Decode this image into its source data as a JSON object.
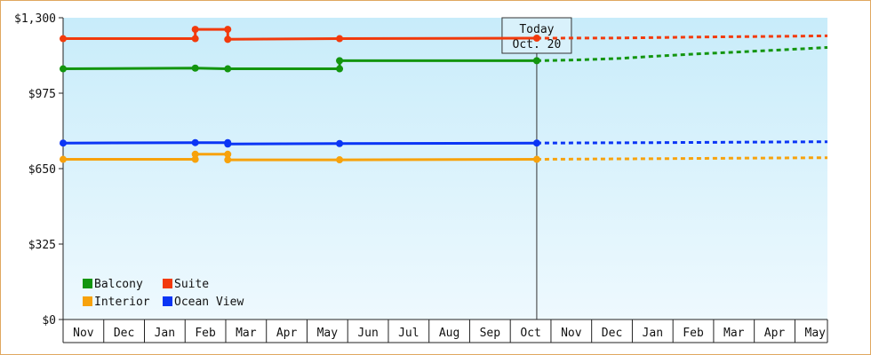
{
  "chart_data": {
    "type": "line",
    "title": "",
    "xlabel": "",
    "ylabel": "",
    "ylim": [
      0,
      1300
    ],
    "y_ticks": [
      {
        "value": 0,
        "label": "$0"
      },
      {
        "value": 325,
        "label": "$325"
      },
      {
        "value": 650,
        "label": "$650"
      },
      {
        "value": 975,
        "label": "$975"
      },
      {
        "value": 1300,
        "label": "$1,300"
      }
    ],
    "x_domain_months": [
      0,
      18.8
    ],
    "x_ticks": [
      "Nov",
      "Dec",
      "Jan",
      "Feb",
      "Mar",
      "Apr",
      "May",
      "Jun",
      "Jul",
      "Aug",
      "Sep",
      "Oct",
      "Nov",
      "Dec",
      "Jan",
      "Feb",
      "Mar",
      "Apr",
      "May"
    ],
    "today_marker": {
      "line1": "Today",
      "line2": "Oct. 20",
      "x": 11.65
    },
    "legend_position": "bottom-left",
    "grid": false,
    "background_gradient": [
      "#c8ecfa",
      "#eef9fe"
    ],
    "series": [
      {
        "name": "Balcony",
        "color": "#13950f",
        "observed": [
          [
            0,
            1080
          ],
          [
            3.25,
            1083
          ],
          [
            3.25,
            1083
          ],
          [
            4.05,
            1080
          ],
          [
            4.05,
            1080
          ],
          [
            6.8,
            1080
          ],
          [
            6.8,
            1115
          ],
          [
            11.65,
            1115
          ]
        ],
        "markers": [
          [
            0,
            1080
          ],
          [
            3.25,
            1083
          ],
          [
            4.05,
            1080
          ],
          [
            6.8,
            1080
          ],
          [
            6.8,
            1115
          ],
          [
            11.65,
            1115
          ]
        ],
        "forecast": [
          [
            11.65,
            1115
          ],
          [
            12.6,
            1118
          ],
          [
            13.7,
            1125
          ],
          [
            14.6,
            1135
          ],
          [
            15.7,
            1145
          ],
          [
            16.7,
            1153
          ],
          [
            17.7,
            1162
          ],
          [
            18.8,
            1172
          ]
        ]
      },
      {
        "name": "Suite",
        "color": "#f23a0c",
        "observed": [
          [
            0,
            1210
          ],
          [
            3.25,
            1210
          ],
          [
            3.25,
            1250
          ],
          [
            4.05,
            1250
          ],
          [
            4.05,
            1207
          ],
          [
            6.8,
            1210
          ],
          [
            11.65,
            1212
          ]
        ],
        "markers": [
          [
            0,
            1210
          ],
          [
            3.25,
            1210
          ],
          [
            3.25,
            1250
          ],
          [
            4.05,
            1250
          ],
          [
            4.05,
            1207
          ],
          [
            6.8,
            1210
          ],
          [
            11.65,
            1212
          ]
        ],
        "forecast": [
          [
            11.65,
            1212
          ],
          [
            13.7,
            1213
          ],
          [
            15.7,
            1217
          ],
          [
            17.7,
            1220
          ],
          [
            18.8,
            1222
          ]
        ]
      },
      {
        "name": "Interior",
        "color": "#f7a20c",
        "observed": [
          [
            0,
            690
          ],
          [
            3.25,
            690
          ],
          [
            3.25,
            712
          ],
          [
            4.05,
            712
          ],
          [
            4.05,
            688
          ],
          [
            6.8,
            688
          ],
          [
            11.65,
            690
          ]
        ],
        "markers": [
          [
            0,
            690
          ],
          [
            3.25,
            690
          ],
          [
            3.25,
            712
          ],
          [
            4.05,
            712
          ],
          [
            4.05,
            688
          ],
          [
            6.8,
            688
          ],
          [
            11.65,
            690
          ]
        ],
        "forecast": [
          [
            11.65,
            690
          ],
          [
            14.6,
            693
          ],
          [
            16.7,
            695
          ],
          [
            18.8,
            697
          ]
        ]
      },
      {
        "name": "Ocean View",
        "color": "#0a35f5",
        "observed": [
          [
            0,
            760
          ],
          [
            3.25,
            762
          ],
          [
            4.05,
            762
          ],
          [
            4.05,
            756
          ],
          [
            6.8,
            758
          ],
          [
            11.65,
            760
          ]
        ],
        "markers": [
          [
            0,
            760
          ],
          [
            3.25,
            762
          ],
          [
            4.05,
            762
          ],
          [
            4.05,
            756
          ],
          [
            6.8,
            758
          ],
          [
            11.65,
            760
          ]
        ],
        "forecast": [
          [
            11.65,
            760
          ],
          [
            14.6,
            762
          ],
          [
            16.7,
            764
          ],
          [
            18.8,
            766
          ]
        ]
      }
    ],
    "legend_layout": [
      [
        "Balcony",
        "Suite"
      ],
      [
        "Interior",
        "Ocean View"
      ]
    ]
  }
}
